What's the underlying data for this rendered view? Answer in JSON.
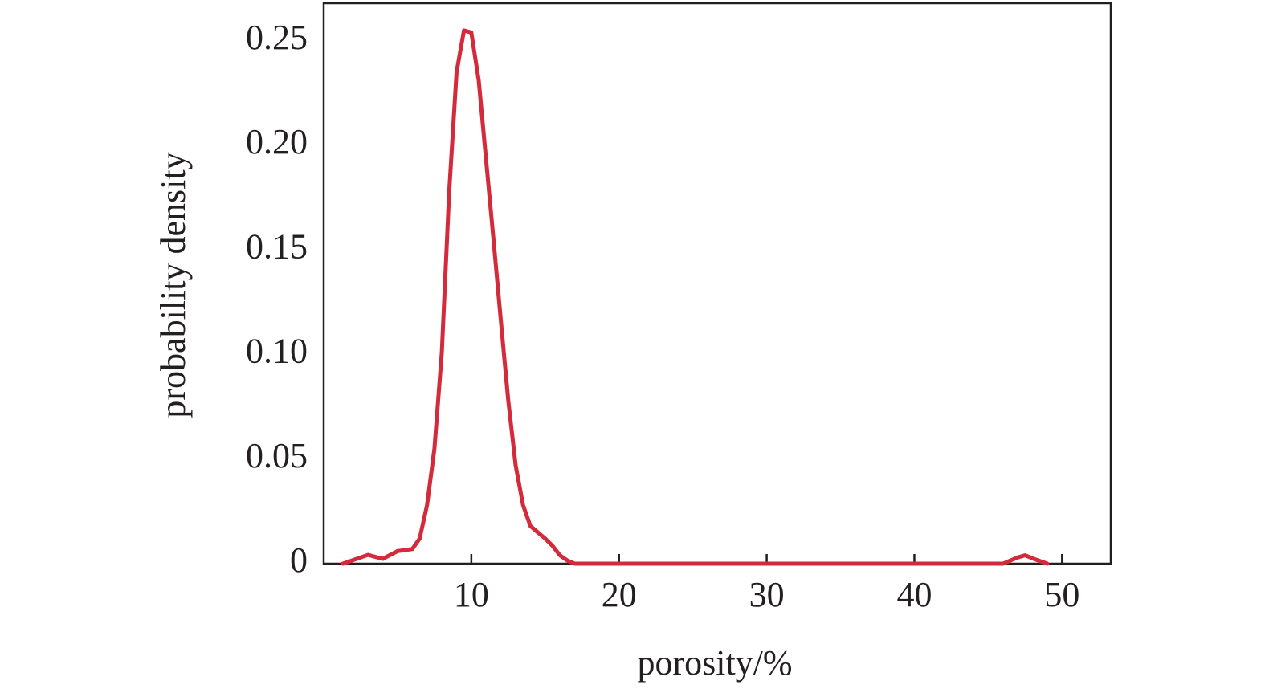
{
  "chart_data": {
    "type": "line",
    "xlabel": "porosity/%",
    "ylabel": "probability density",
    "x": [
      1.3,
      3,
      4,
      5,
      6,
      6.5,
      7,
      7.5,
      8,
      8.5,
      9,
      9.5,
      10,
      10.5,
      11,
      11.5,
      12,
      12.5,
      13,
      13.5,
      14,
      14.5,
      15,
      15.5,
      16,
      16.5,
      17,
      20,
      30,
      40,
      46,
      47,
      47.5,
      48.2,
      49
    ],
    "values": [
      0,
      0.0042,
      0.0023,
      0.006,
      0.007,
      0.012,
      0.028,
      0.055,
      0.101,
      0.178,
      0.235,
      0.255,
      0.254,
      0.231,
      0.193,
      0.155,
      0.116,
      0.078,
      0.047,
      0.028,
      0.018,
      0.015,
      0.012,
      0.0085,
      0.004,
      0.0015,
      0,
      0,
      0,
      0,
      0,
      0.003,
      0.004,
      0.002,
      0
    ],
    "color": "#d42a3c",
    "xlim": [
      0,
      53.3
    ],
    "ylim": [
      0,
      0.268
    ],
    "xticks": [
      10,
      20,
      30,
      40,
      50
    ],
    "yticks": [
      0,
      0.05,
      {
        "value": 0.1,
        "label": "0.10"
      },
      0.15,
      {
        "value": 0.2,
        "label": "0.20"
      },
      0.25
    ]
  }
}
